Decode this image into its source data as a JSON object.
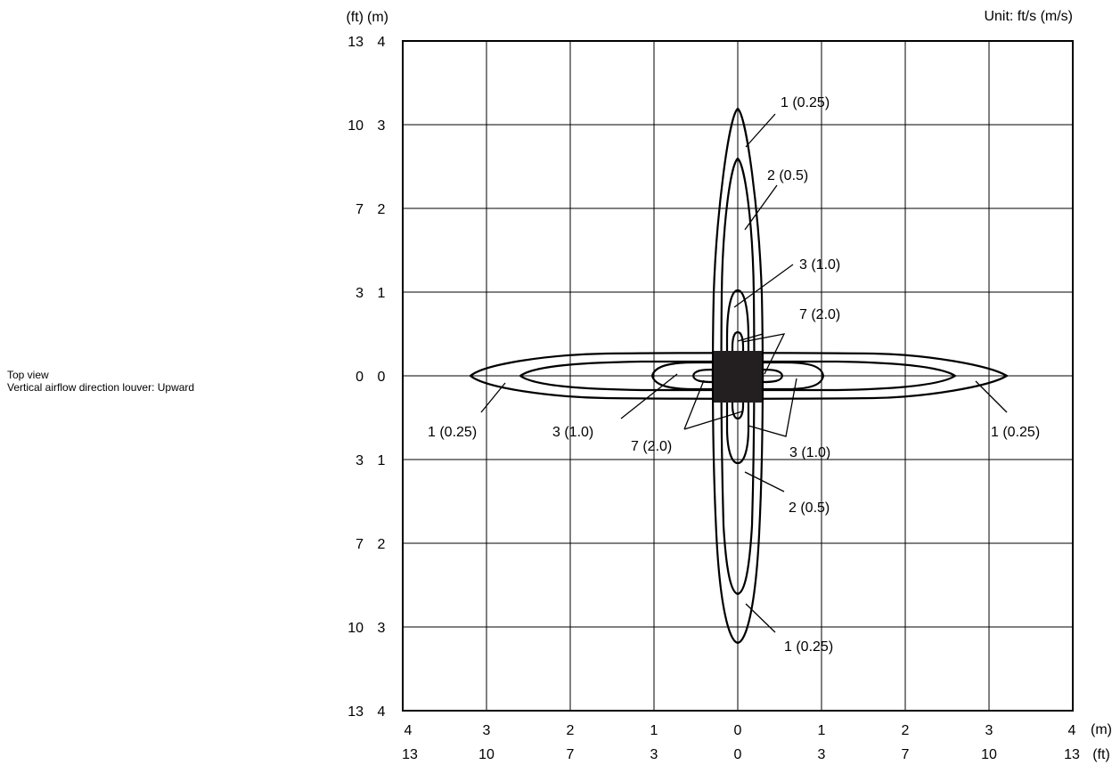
{
  "caption": {
    "line1": "Top view",
    "line2": "Vertical airflow direction louver: Upward"
  },
  "unit_label": "Unit: ft/s (m/s)",
  "left_axis": {
    "ft_header": "(ft)",
    "m_header": "(m)",
    "ft_ticks": [
      "13",
      "10",
      "7",
      "3",
      "0",
      "3",
      "7",
      "10",
      "13"
    ],
    "m_ticks": [
      "4",
      "3",
      "2",
      "1",
      "0",
      "1",
      "2",
      "3",
      "4"
    ]
  },
  "bottom_axis": {
    "m_ticks": [
      "4",
      "3",
      "2",
      "1",
      "0",
      "1",
      "2",
      "3",
      "4"
    ],
    "ft_ticks": [
      "13",
      "10",
      "7",
      "3",
      "0",
      "3",
      "7",
      "10",
      "13"
    ],
    "m_unit": "(m)",
    "ft_unit": "(ft)"
  },
  "contour_labels": [
    {
      "text": "1 (0.25)",
      "position": "top"
    },
    {
      "text": "2 (0.5)",
      "position": "upper"
    },
    {
      "text": "3 (1.0)",
      "position": "upper-mid"
    },
    {
      "text": "7 (2.0)",
      "position": "upper-center"
    },
    {
      "text": "1 (0.25)",
      "position": "left"
    },
    {
      "text": "3 (1.0)",
      "position": "left-center"
    },
    {
      "text": "7 (2.0)",
      "position": "lower-center"
    },
    {
      "text": "3 (1.0)",
      "position": "right-center"
    },
    {
      "text": "1 (0.25)",
      "position": "right"
    },
    {
      "text": "2 (0.5)",
      "position": "lower"
    },
    {
      "text": "1 (0.25)",
      "position": "bottom"
    }
  ]
}
